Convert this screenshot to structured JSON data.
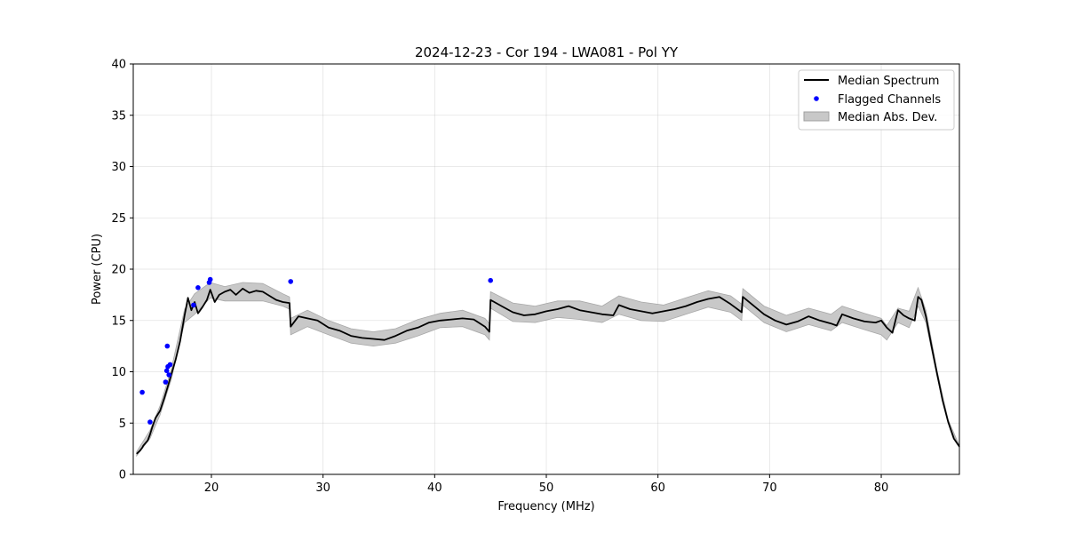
{
  "chart_data": {
    "type": "line",
    "title": "2024-12-23 - Cor 194 - LWA081 - Pol YY",
    "xlabel": "Frequency (MHz)",
    "ylabel": "Power (CPU)",
    "xlim": [
      13,
      87
    ],
    "ylim": [
      0,
      40
    ],
    "xticks": [
      20,
      30,
      40,
      50,
      60,
      70,
      80
    ],
    "yticks": [
      0,
      5,
      10,
      15,
      20,
      25,
      30,
      35,
      40
    ],
    "grid": true,
    "legend_position": "top-right",
    "legend": [
      {
        "label": "Median Spectrum",
        "kind": "line",
        "color": "#000000"
      },
      {
        "label": "Flagged Channels",
        "kind": "marker",
        "color": "#0000ff"
      },
      {
        "label": "Median Abs. Dev.",
        "kind": "band",
        "color": "#c8c8c8"
      }
    ],
    "series": [
      {
        "name": "Median Spectrum",
        "x": [
          13.3,
          13.6,
          13.8,
          13.9,
          14.3,
          14.5,
          14.7,
          15.0,
          15.4,
          15.8,
          16.1,
          16.4,
          16.8,
          17.2,
          17.6,
          17.9,
          18.2,
          18.5,
          18.8,
          19.2,
          19.6,
          19.9,
          20.3,
          20.7,
          21.2,
          21.7,
          22.2,
          22.8,
          23.4,
          24.0,
          24.6,
          25.2,
          25.8,
          26.4,
          27.0,
          27.1,
          27.8,
          28.6,
          29.5,
          30.5,
          31.5,
          32.5,
          33.5,
          34.5,
          35.5,
          36.5,
          37.5,
          38.5,
          39.5,
          40.5,
          41.5,
          42.5,
          43.5,
          44.5,
          44.9,
          45.0,
          46.0,
          47.0,
          48.0,
          49.0,
          50.0,
          51.0,
          52.0,
          53.0,
          54.0,
          55.0,
          56.0,
          56.5,
          57.5,
          58.5,
          59.5,
          60.5,
          61.5,
          62.5,
          63.5,
          64.5,
          65.5,
          66.5,
          67.5,
          67.6,
          68.5,
          69.5,
          70.5,
          71.5,
          72.5,
          73.5,
          74.5,
          75.5,
          76.0,
          76.5,
          77.5,
          78.5,
          79.5,
          80.0,
          80.5,
          81.0,
          81.5,
          82.0,
          82.5,
          83.0,
          83.3,
          83.6,
          84.0,
          84.5,
          85.0,
          85.5,
          86.0,
          86.5,
          87.0
        ],
        "y": [
          2.0,
          2.3,
          2.6,
          2.8,
          3.3,
          3.9,
          4.6,
          5.5,
          6.2,
          7.5,
          8.6,
          9.7,
          11.2,
          13.0,
          15.5,
          17.2,
          16.0,
          16.8,
          15.7,
          16.3,
          17.0,
          18.0,
          16.8,
          17.5,
          17.8,
          18.0,
          17.5,
          18.1,
          17.7,
          17.9,
          17.8,
          17.4,
          17.0,
          16.8,
          16.7,
          14.4,
          15.4,
          15.2,
          15.0,
          14.3,
          14.0,
          13.5,
          13.3,
          13.2,
          13.1,
          13.5,
          14.0,
          14.3,
          14.8,
          15.0,
          15.1,
          15.2,
          15.1,
          14.4,
          13.9,
          17.0,
          16.4,
          15.8,
          15.5,
          15.6,
          15.9,
          16.1,
          16.4,
          16.0,
          15.8,
          15.6,
          15.5,
          16.5,
          16.1,
          15.9,
          15.7,
          15.9,
          16.1,
          16.4,
          16.8,
          17.1,
          17.3,
          16.6,
          15.8,
          17.3,
          16.5,
          15.6,
          15.0,
          14.6,
          14.9,
          15.4,
          15.0,
          14.7,
          14.5,
          15.6,
          15.2,
          14.9,
          14.8,
          15.0,
          14.3,
          13.8,
          16.0,
          15.5,
          15.2,
          15.0,
          17.3,
          17.0,
          15.4,
          12.5,
          9.8,
          7.2,
          5.1,
          3.5,
          2.7
        ]
      }
    ],
    "mad_band": {
      "x": [
        13.3,
        14.5,
        15.4,
        16.4,
        17.6,
        18.5,
        19.9,
        21.2,
        22.8,
        24.6,
        26.4,
        27.0,
        27.1,
        28.6,
        30.5,
        32.5,
        34.5,
        36.5,
        38.5,
        40.5,
        42.5,
        44.5,
        44.9,
        45.0,
        47.0,
        49.0,
        51.0,
        53.0,
        55.0,
        56.5,
        58.5,
        60.5,
        62.5,
        64.5,
        66.5,
        67.5,
        67.6,
        69.5,
        71.5,
        73.5,
        75.5,
        76.5,
        78.5,
        80.0,
        80.5,
        81.5,
        82.5,
        83.3,
        84.0,
        85.0,
        86.0,
        87.0
      ],
      "lower": [
        1.8,
        3.5,
        5.8,
        9.2,
        14.8,
        15.6,
        17.2,
        16.9,
        16.9,
        16.9,
        16.4,
        16.1,
        13.6,
        14.4,
        13.6,
        12.8,
        12.5,
        12.8,
        13.5,
        14.3,
        14.4,
        13.6,
        13.1,
        16.2,
        14.9,
        14.8,
        15.3,
        15.1,
        14.8,
        15.6,
        15.0,
        14.9,
        15.6,
        16.3,
        15.8,
        15.0,
        16.5,
        14.8,
        13.9,
        14.6,
        14.0,
        14.8,
        14.1,
        13.6,
        13.1,
        14.8,
        14.3,
        16.4,
        14.8,
        9.5,
        5.0,
        2.6
      ],
      "upper": [
        2.2,
        4.3,
        6.7,
        10.2,
        16.1,
        17.6,
        18.7,
        18.3,
        18.7,
        18.6,
        17.6,
        17.3,
        15.2,
        16.0,
        15.0,
        14.2,
        13.9,
        14.2,
        15.1,
        15.7,
        16.0,
        15.2,
        14.7,
        17.8,
        16.7,
        16.4,
        16.9,
        16.9,
        16.4,
        17.4,
        16.8,
        16.5,
        17.2,
        17.9,
        17.4,
        16.6,
        18.1,
        16.4,
        15.5,
        16.2,
        15.6,
        16.4,
        15.7,
        15.2,
        14.5,
        16.2,
        15.9,
        18.2,
        16.0,
        10.1,
        5.3,
        2.8
      ]
    },
    "flagged_channels": {
      "x": [
        13.8,
        14.5,
        15.9,
        16.0,
        16.05,
        16.1,
        16.2,
        16.3,
        18.4,
        18.8,
        19.8,
        19.9,
        27.1,
        45.0
      ],
      "y": [
        8.0,
        5.1,
        9.0,
        10.1,
        12.5,
        10.5,
        9.7,
        10.7,
        16.5,
        18.2,
        18.7,
        19.0,
        18.8,
        18.9
      ]
    }
  }
}
